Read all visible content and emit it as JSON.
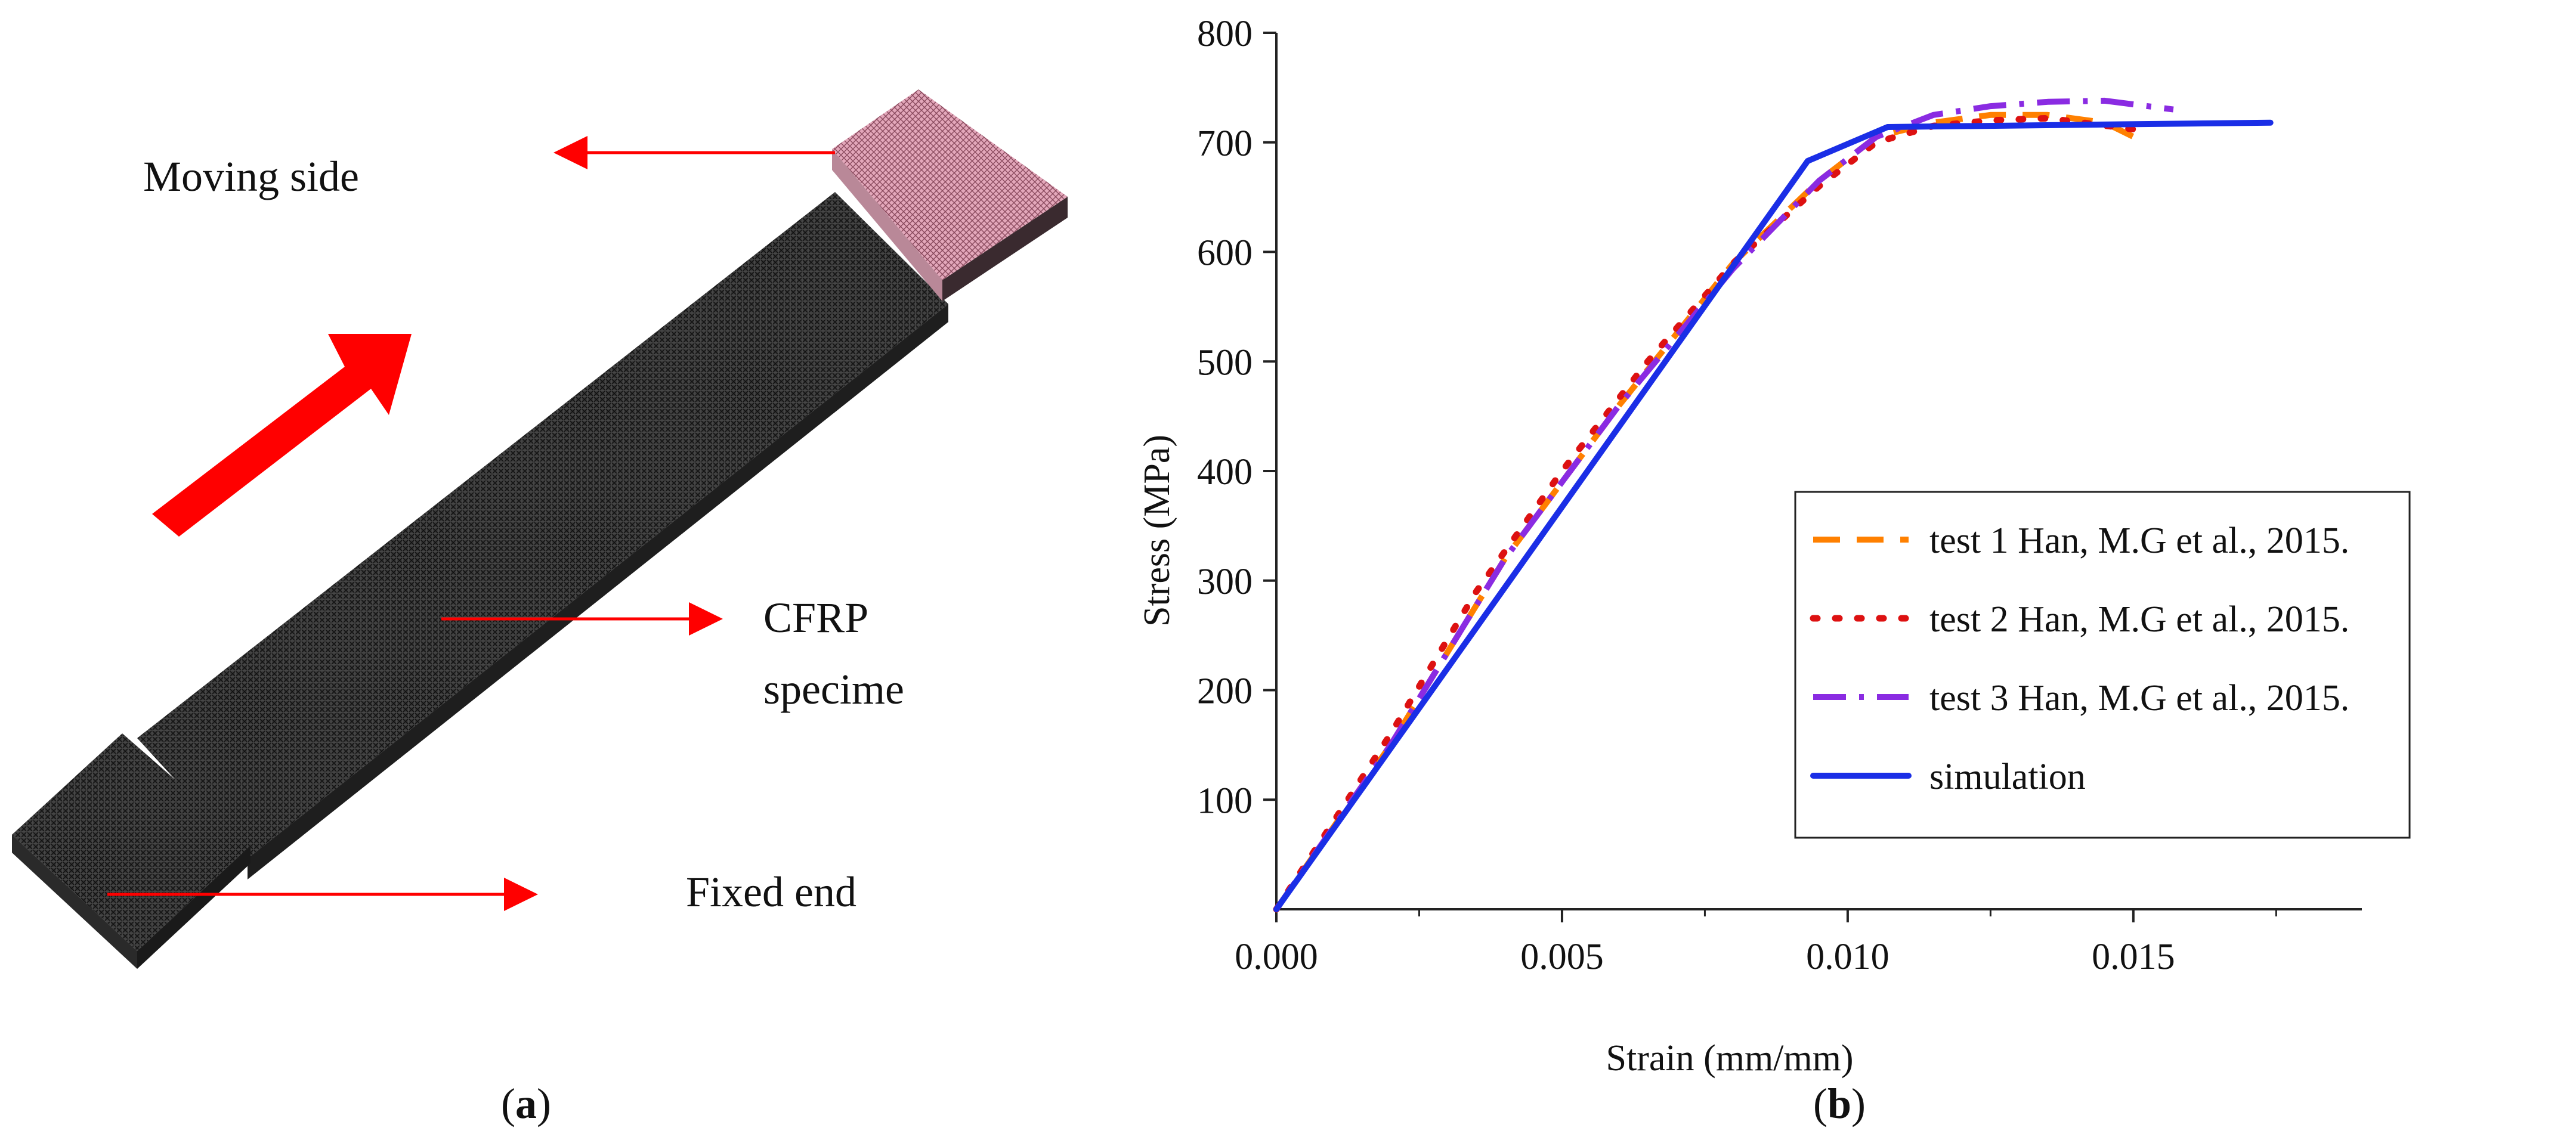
{
  "panel_a": {
    "caption": "(a)",
    "caption_letter": "a",
    "labels": {
      "moving_side": "Moving side",
      "cfrp_line1": "CFRP",
      "cfrp_line2": "specime",
      "fixed_end": "Fixed end"
    },
    "colors": {
      "specimen": "#2a2a2a",
      "tab_pink": "#e8b4c4",
      "arrow_red": "#ff0000"
    }
  },
  "panel_b": {
    "caption": "(b)",
    "caption_letter": "b"
  },
  "chart_data": {
    "type": "line",
    "title": "",
    "xlabel": "Strain (mm/mm)",
    "ylabel": "Stress (MPa)",
    "xlim": [
      0,
      0.019
    ],
    "ylim": [
      0,
      800
    ],
    "xticks": [
      0.0,
      0.005,
      0.01,
      0.015
    ],
    "xtick_labels": [
      "0.000",
      "0.005",
      "0.010",
      "0.015"
    ],
    "yticks": [
      100,
      200,
      300,
      400,
      500,
      600,
      700,
      800
    ],
    "ytick_labels": [
      "100",
      "200",
      "300",
      "400",
      "500",
      "600",
      "700",
      "800"
    ],
    "legend_position": "right",
    "series": [
      {
        "name": "test 1 Han, M.G et al., 2015.",
        "color": "#ff8000",
        "style": "dash",
        "points": [
          [
            0,
            0
          ],
          [
            0.002,
            150
          ],
          [
            0.004,
            320
          ],
          [
            0.006,
            460
          ],
          [
            0.008,
            590
          ],
          [
            0.0095,
            665
          ],
          [
            0.0105,
            705
          ],
          [
            0.0115,
            718
          ],
          [
            0.0125,
            725
          ],
          [
            0.0135,
            725
          ],
          [
            0.0145,
            718
          ],
          [
            0.0152,
            700
          ]
        ]
      },
      {
        "name": "test 2 Han, M.G et al., 2015.",
        "color": "#dd1111",
        "style": "dot",
        "points": [
          [
            0,
            0
          ],
          [
            0.002,
            160
          ],
          [
            0.0035,
            290
          ],
          [
            0.005,
            400
          ],
          [
            0.0065,
            500
          ],
          [
            0.008,
            590
          ],
          [
            0.0095,
            660
          ],
          [
            0.0105,
            700
          ],
          [
            0.0115,
            715
          ],
          [
            0.0125,
            720
          ],
          [
            0.0135,
            722
          ],
          [
            0.015,
            712
          ]
        ]
      },
      {
        "name": "test 3 Han, M.G et al., 2015.",
        "color": "#8a2be2",
        "style": "dashdot",
        "points": [
          [
            0,
            0
          ],
          [
            0.002,
            150
          ],
          [
            0.004,
            320
          ],
          [
            0.006,
            460
          ],
          [
            0.008,
            585
          ],
          [
            0.0095,
            665
          ],
          [
            0.0105,
            705
          ],
          [
            0.0115,
            725
          ],
          [
            0.0125,
            733
          ],
          [
            0.0135,
            737
          ],
          [
            0.0145,
            738
          ],
          [
            0.0157,
            730
          ]
        ]
      },
      {
        "name": "simulation",
        "color": "#1a2ee6",
        "style": "solid",
        "points": [
          [
            0,
            0
          ],
          [
            0.0093,
            683
          ],
          [
            0.0107,
            714
          ],
          [
            0.0174,
            718
          ]
        ]
      }
    ]
  }
}
